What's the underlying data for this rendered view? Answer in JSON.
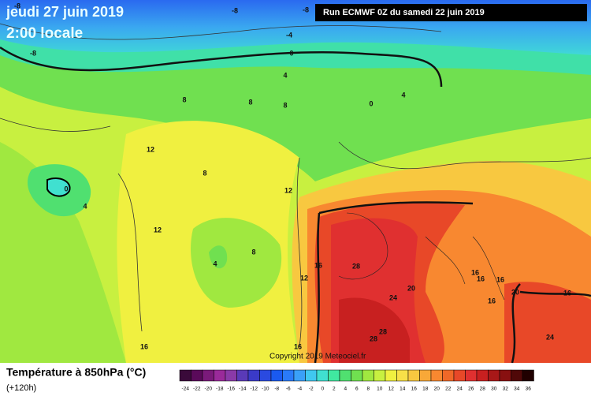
{
  "header": {
    "title": "jeudi 27 juin 2019",
    "subtitle": "2:00 locale",
    "run": "Run ECMWF 0Z du samedi 22 juin 2019"
  },
  "copyright": "Copyright 2019 Meteociel.fr",
  "legend": {
    "title": "Température à 850hPa (°C)",
    "lead": "(+120h)",
    "ticks": [
      -24,
      -22,
      -20,
      -18,
      -16,
      -14,
      -12,
      -10,
      -8,
      -6,
      -4,
      -2,
      0,
      2,
      4,
      6,
      8,
      10,
      12,
      14,
      16,
      18,
      20,
      22,
      24,
      26,
      28,
      30,
      32,
      34,
      36
    ],
    "colors": [
      "#3a0a3a",
      "#5a0a5a",
      "#7a1a7a",
      "#9a2a9a",
      "#8a3aa8",
      "#5a3ab8",
      "#3a3ac8",
      "#2a4ae0",
      "#1a5af0",
      "#2a7af8",
      "#3aa0f8",
      "#40c8f0",
      "#40e0d0",
      "#40e8a0",
      "#50e070",
      "#70e050",
      "#a0e840",
      "#c8f040",
      "#f0f040",
      "#f8e048",
      "#f8c840",
      "#f8a838",
      "#f88830",
      "#f06828",
      "#e84828",
      "#e03030",
      "#c82020",
      "#a81818",
      "#881010",
      "#500808",
      "#200000"
    ]
  },
  "contour_labels": [
    -8,
    -8,
    -8,
    -4,
    -8,
    0,
    4,
    8,
    8,
    8,
    0,
    4,
    12,
    8,
    0,
    4,
    12,
    12,
    4,
    8,
    16,
    12,
    28,
    20,
    24,
    16,
    16,
    16,
    20,
    16,
    16,
    28,
    28,
    24,
    16,
    16
  ]
}
